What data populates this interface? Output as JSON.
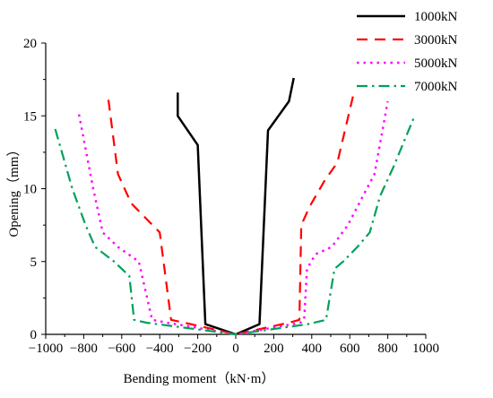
{
  "chart_data": {
    "type": "line",
    "xlabel": "Bending moment（kN·m）",
    "ylabel": "Opening（mm）",
    "xlim": [
      -1000,
      1000
    ],
    "ylim": [
      0,
      20
    ],
    "x_ticks": [
      -1000,
      -800,
      -600,
      -400,
      -200,
      0,
      200,
      400,
      600,
      800,
      1000
    ],
    "x_tick_labels": [
      "−1000",
      "−800",
      "−600",
      "−400",
      "−200",
      "0",
      "200",
      "400",
      "600",
      "800",
      "1000"
    ],
    "y_ticks": [
      0,
      5,
      10,
      15,
      20
    ],
    "y_tick_labels": [
      "0",
      "5",
      "10",
      "15",
      "20"
    ],
    "grid": false,
    "legend_position": "top-right",
    "series": [
      {
        "name": "1000kN",
        "color": "#000000",
        "dash": "solid",
        "points": [
          [
            -305,
            16.6
          ],
          [
            -305,
            15.0
          ],
          [
            -200,
            13.0
          ],
          [
            -160,
            0.7
          ],
          [
            0,
            0
          ],
          [
            125,
            0.7
          ],
          [
            170,
            14.0
          ],
          [
            280,
            16.0
          ],
          [
            305,
            17.6
          ]
        ]
      },
      {
        "name": "3000kN",
        "color": "#ff0000",
        "dash": "dashed",
        "points": [
          [
            -670,
            16.1
          ],
          [
            -620,
            11.0
          ],
          [
            -550,
            9.0
          ],
          [
            -400,
            7.0
          ],
          [
            -340,
            1.0
          ],
          [
            -270,
            0.8
          ],
          [
            0,
            0
          ],
          [
            280,
            0.8
          ],
          [
            335,
            1.0
          ],
          [
            345,
            7.5
          ],
          [
            390,
            8.8
          ],
          [
            465,
            10.5
          ],
          [
            535,
            11.8
          ],
          [
            620,
            16.5
          ]
        ]
      },
      {
        "name": "5000kN",
        "color": "#ff00ff",
        "dash": "dotted",
        "points": [
          [
            -825,
            15.1
          ],
          [
            -750,
            10.0
          ],
          [
            -700,
            7.0
          ],
          [
            -620,
            6.0
          ],
          [
            -510,
            5.0
          ],
          [
            -440,
            1.0
          ],
          [
            -360,
            0.8
          ],
          [
            0,
            0
          ],
          [
            340,
            0.8
          ],
          [
            360,
            1.0
          ],
          [
            375,
            4.5
          ],
          [
            420,
            5.5
          ],
          [
            505,
            6.0
          ],
          [
            590,
            7.5
          ],
          [
            670,
            9.5
          ],
          [
            730,
            11.0
          ],
          [
            800,
            16.0
          ]
        ]
      },
      {
        "name": "7000kN",
        "color": "#00a05a",
        "dash": "dashdot",
        "points": [
          [
            -950,
            14.1
          ],
          [
            -860,
            10.0
          ],
          [
            -790,
            7.5
          ],
          [
            -740,
            6.0
          ],
          [
            -640,
            5.0
          ],
          [
            -560,
            4.0
          ],
          [
            -535,
            1.0
          ],
          [
            -470,
            0.8
          ],
          [
            0,
            0
          ],
          [
            380,
            0.7
          ],
          [
            475,
            1.0
          ],
          [
            520,
            4.5
          ],
          [
            565,
            5.0
          ],
          [
            640,
            6.0
          ],
          [
            705,
            7.0
          ],
          [
            760,
            9.5
          ],
          [
            830,
            11.5
          ],
          [
            935,
            14.8
          ]
        ]
      }
    ]
  }
}
